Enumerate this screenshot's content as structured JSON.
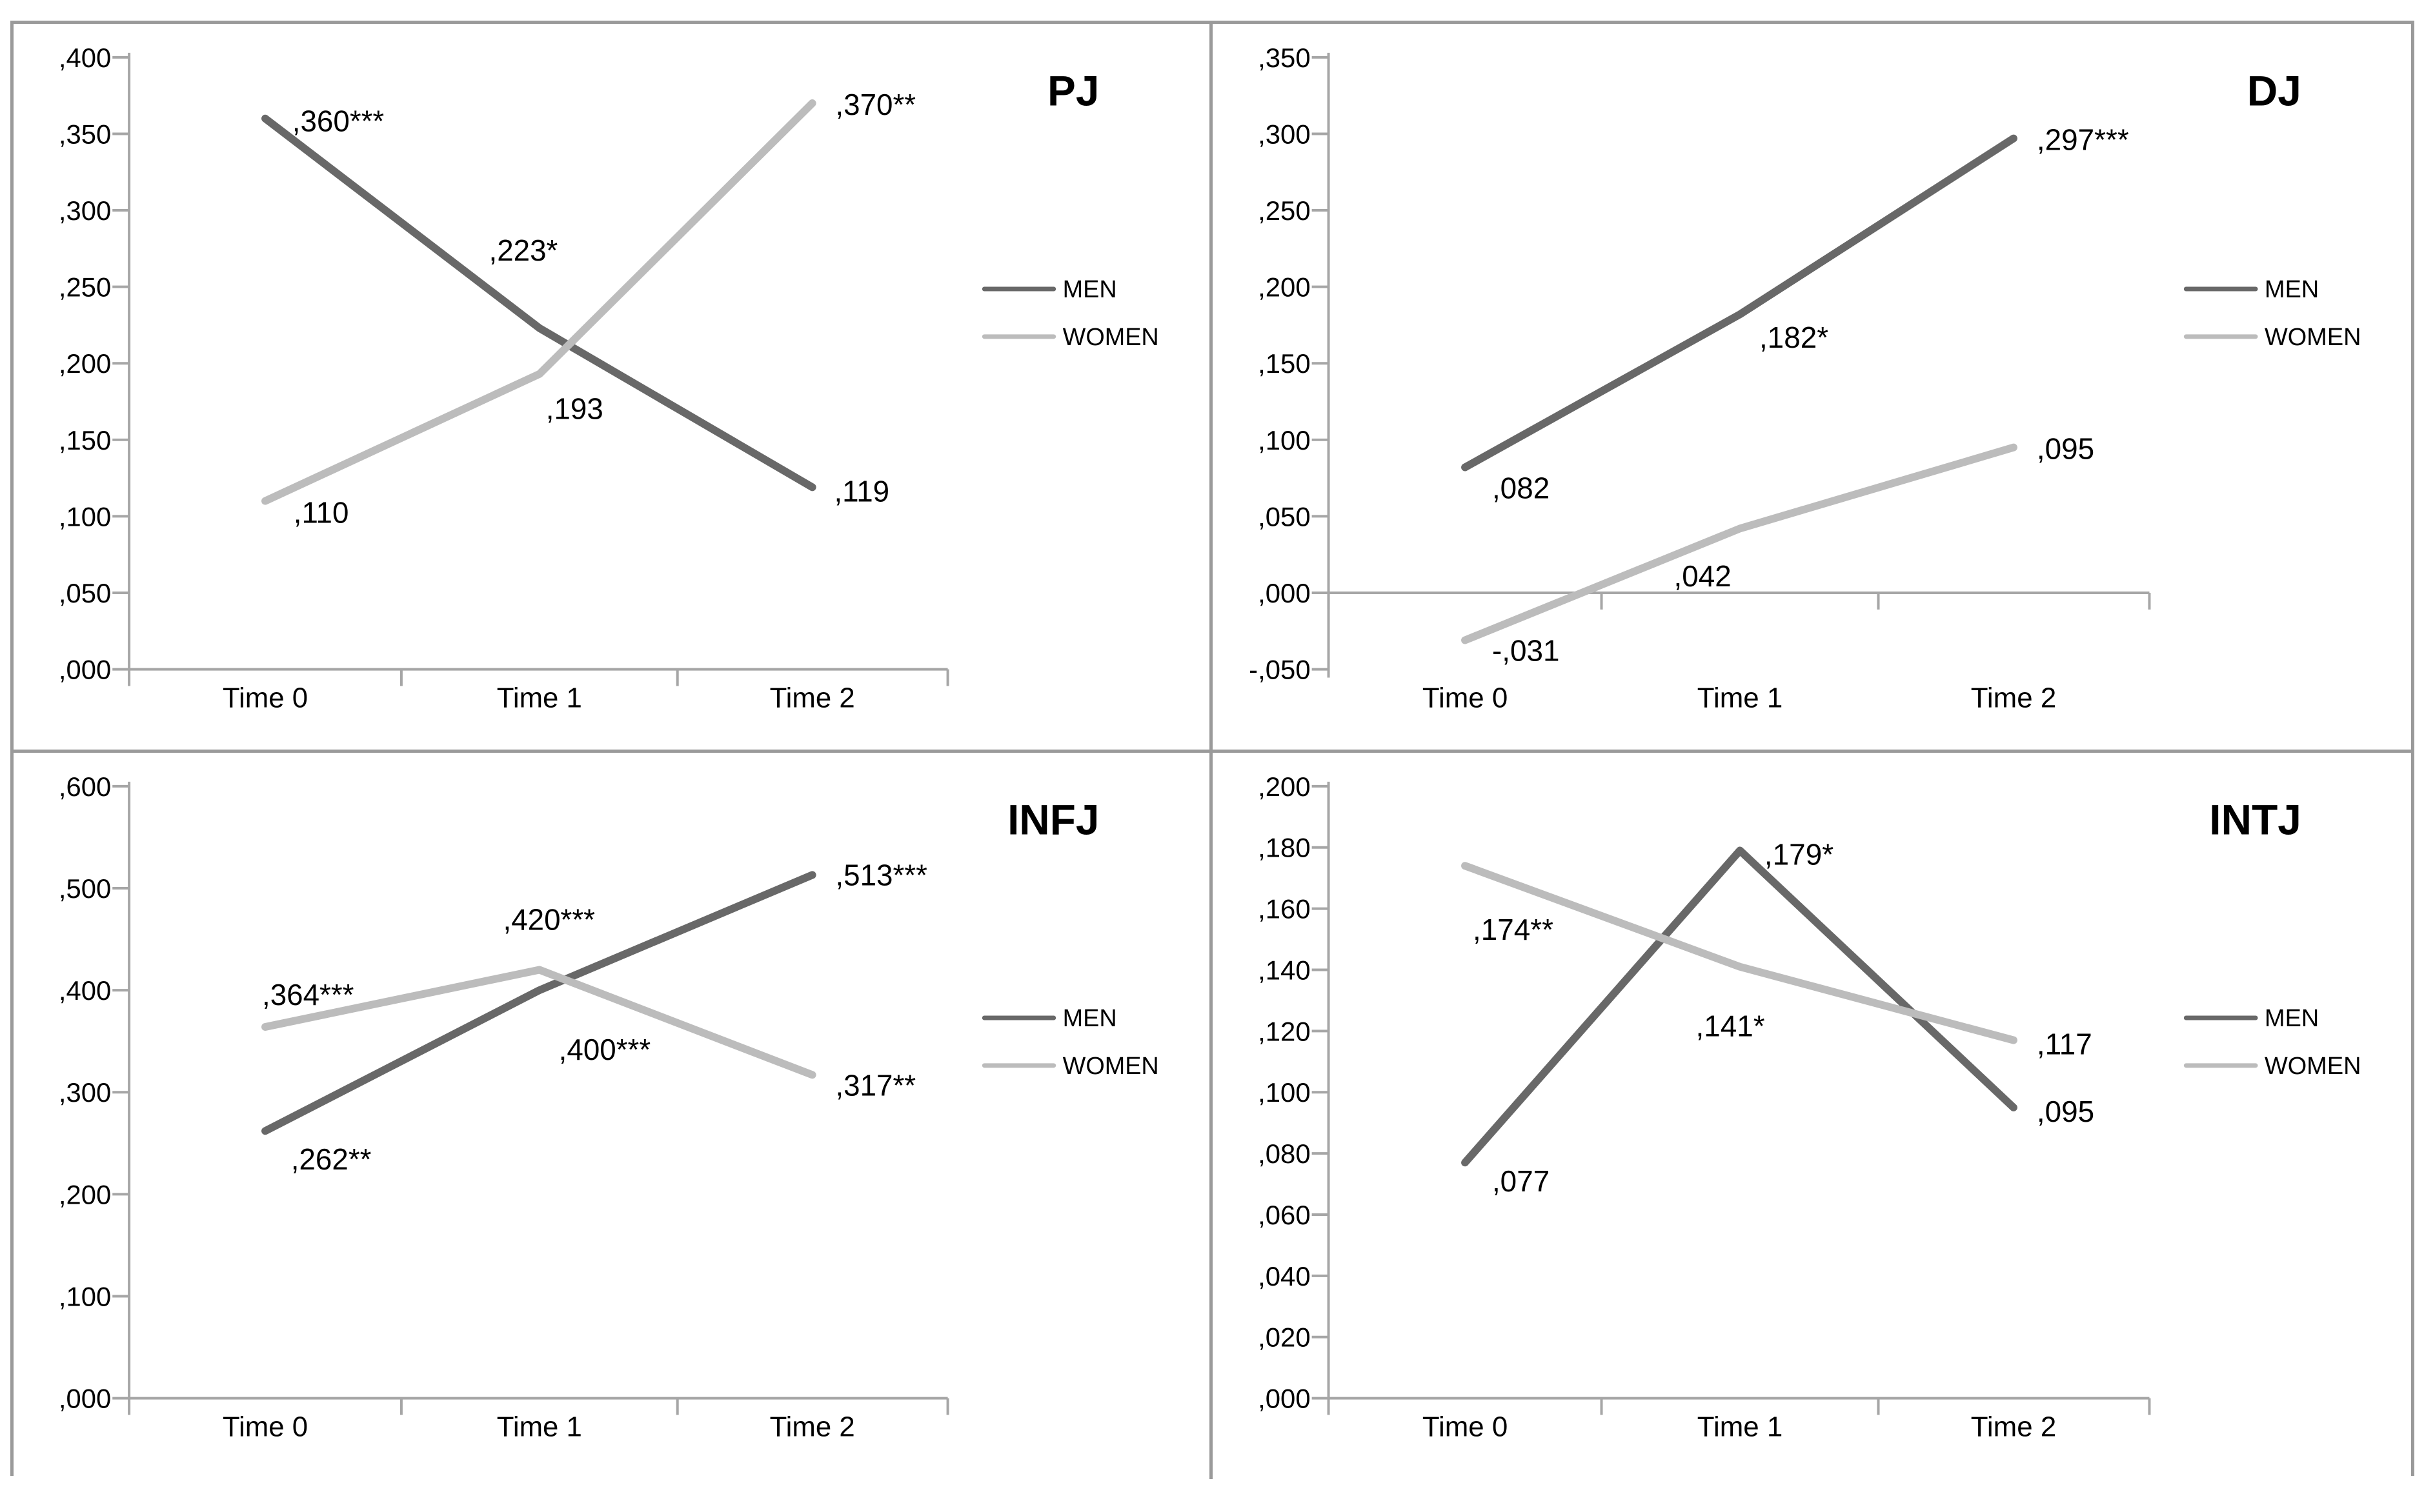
{
  "figure": {
    "panel_border_color": "#9a9a9a",
    "axis_color": "#a6a6a6",
    "text_color": "#000000",
    "series_colors": {
      "MEN": "#686868",
      "WOMEN": "#bcbcbc"
    },
    "legend_entries": [
      "MEN",
      "WOMEN"
    ]
  },
  "chart_data": [
    {
      "id": "pj",
      "title": "PJ",
      "type": "line",
      "categories": [
        "Time 0",
        "Time 1",
        "Time 2"
      ],
      "ylim": [
        0.0,
        0.4
      ],
      "ytick_labels": [
        ",400",
        ",350",
        ",300",
        ",250",
        ",200",
        ",150",
        ",100",
        ",050",
        ",000"
      ],
      "baseline_value": 0.0,
      "grid": false,
      "legend_position": "right",
      "legend_entries": [
        "MEN",
        "WOMEN"
      ],
      "series": [
        {
          "name": "MEN",
          "values": [
            0.36,
            0.223,
            0.119
          ],
          "point_labels": [
            ",360***",
            ",223*",
            ",119"
          ]
        },
        {
          "name": "WOMEN",
          "values": [
            0.11,
            0.193,
            0.37
          ],
          "point_labels": [
            ",110",
            ",193",
            ",370**"
          ]
        }
      ]
    },
    {
      "id": "dj",
      "title": "DJ",
      "type": "line",
      "categories": [
        "Time 0",
        "Time 1",
        "Time 2"
      ],
      "ylim": [
        -0.05,
        0.35
      ],
      "ytick_labels": [
        ",350",
        ",300",
        ",250",
        ",200",
        ",150",
        ",100",
        ",050",
        ",000",
        "-,050"
      ],
      "baseline_value": 0.0,
      "grid": false,
      "legend_position": "right",
      "legend_entries": [
        "MEN",
        "WOMEN"
      ],
      "series": [
        {
          "name": "MEN",
          "values": [
            0.082,
            0.182,
            0.297
          ],
          "point_labels": [
            ",082",
            ",182*",
            ",297***"
          ]
        },
        {
          "name": "WOMEN",
          "values": [
            -0.031,
            0.042,
            0.095
          ],
          "point_labels": [
            "-,031",
            ",042",
            ",095"
          ]
        }
      ]
    },
    {
      "id": "infj",
      "title": "INFJ",
      "type": "line",
      "categories": [
        "Time 0",
        "Time 1",
        "Time 2"
      ],
      "ylim": [
        0.0,
        0.6
      ],
      "ytick_labels": [
        ",600",
        ",500",
        ",400",
        ",300",
        ",200",
        ",100",
        ",000"
      ],
      "baseline_value": 0.0,
      "grid": false,
      "legend_position": "right",
      "legend_entries": [
        "MEN",
        "WOMEN"
      ],
      "series": [
        {
          "name": "MEN",
          "values": [
            0.262,
            0.4,
            0.513
          ],
          "point_labels": [
            ",262**",
            ",400***",
            ",513***"
          ]
        },
        {
          "name": "WOMEN",
          "values": [
            0.364,
            0.42,
            0.317
          ],
          "point_labels": [
            ",364***",
            ",420***",
            ",317**"
          ]
        }
      ]
    },
    {
      "id": "intj",
      "title": "INTJ",
      "type": "line",
      "categories": [
        "Time 0",
        "Time 1",
        "Time 2"
      ],
      "ylim": [
        0.0,
        0.2
      ],
      "ytick_labels": [
        ",200",
        ",180",
        ",160",
        ",140",
        ",120",
        ",100",
        ",080",
        ",060",
        ",040",
        ",020",
        ",000"
      ],
      "baseline_value": 0.0,
      "grid": false,
      "legend_position": "right",
      "legend_entries": [
        "MEN",
        "WOMEN"
      ],
      "series": [
        {
          "name": "MEN",
          "values": [
            0.077,
            0.179,
            0.095
          ],
          "point_labels": [
            ",077",
            ",179*",
            ",095"
          ]
        },
        {
          "name": "WOMEN",
          "values": [
            0.174,
            0.141,
            0.117
          ],
          "point_labels": [
            ",174**",
            ",141*",
            ",117"
          ]
        }
      ]
    }
  ],
  "label_layout": {
    "pj": {
      "MEN": [
        [
          "start",
          42,
          20
        ],
        [
          "middle",
          -25,
          -105
        ],
        [
          "start",
          34,
          22
        ]
      ],
      "WOMEN": [
        [
          "start",
          44,
          34
        ],
        [
          "start",
          10,
          70
        ],
        [
          "start",
          36,
          18
        ]
      ]
    },
    "dj": {
      "MEN": [
        [
          "start",
          42,
          48
        ],
        [
          "start",
          30,
          52
        ],
        [
          "start",
          36,
          18
        ]
      ],
      "WOMEN": [
        [
          "start",
          42,
          32
        ],
        [
          "middle",
          -58,
          90
        ],
        [
          "start",
          36,
          18
        ]
      ]
    },
    "infj": {
      "MEN": [
        [
          "start",
          40,
          60
        ],
        [
          "start",
          30,
          108
        ],
        [
          "start",
          36,
          16
        ]
      ],
      "WOMEN": [
        [
          "start",
          -5,
          -34
        ],
        [
          "middle",
          15,
          -62
        ],
        [
          "start",
          36,
          32
        ]
      ]
    },
    "intj": {
      "MEN": [
        [
          "start",
          42,
          45
        ],
        [
          "start",
          38,
          22
        ],
        [
          "start",
          36,
          22
        ]
      ],
      "WOMEN": [
        [
          "start",
          12,
          115
        ],
        [
          "middle",
          -15,
          108
        ],
        [
          "start",
          36,
          22
        ]
      ]
    }
  }
}
